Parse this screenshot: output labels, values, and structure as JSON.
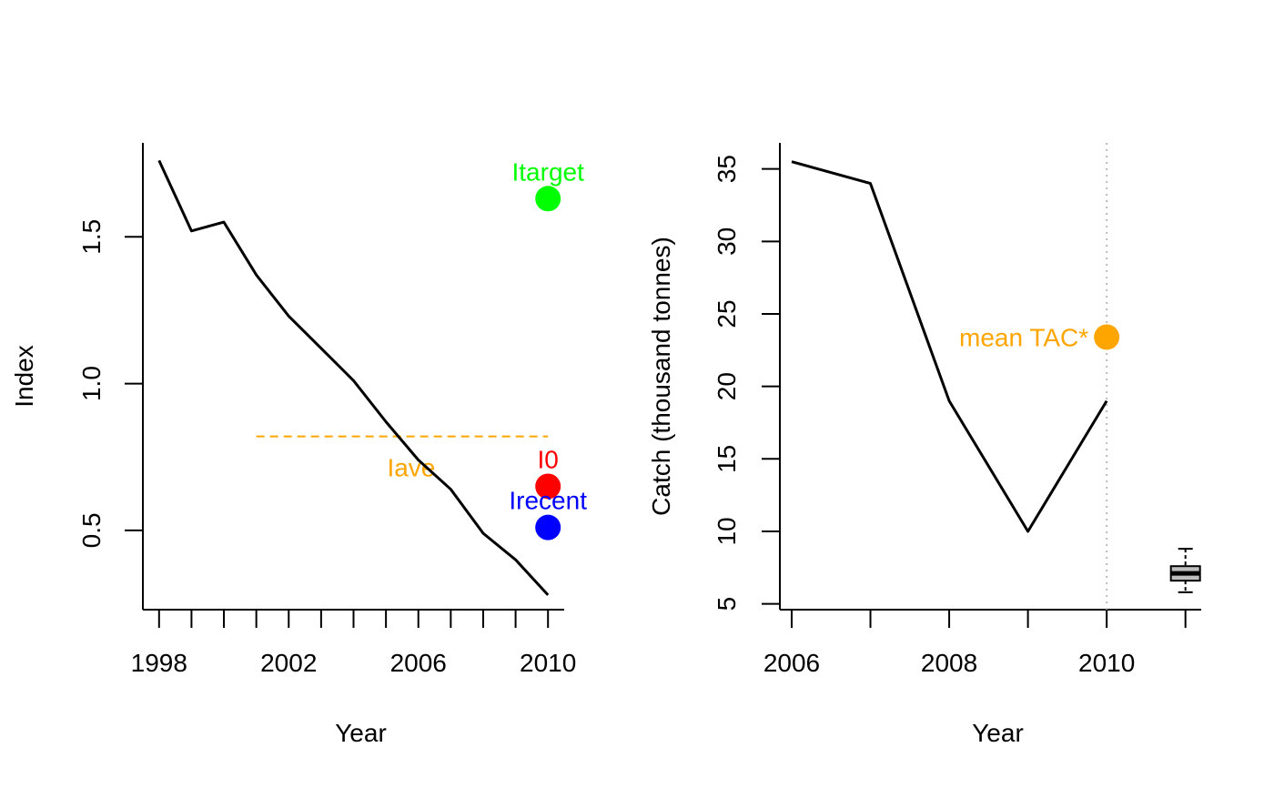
{
  "chart_data": [
    {
      "type": "line",
      "xlabel": "Year",
      "ylabel": "Index",
      "xlim": [
        1997.5,
        2010.5
      ],
      "ylim": [
        0.23,
        1.82
      ],
      "xticks": [
        1998,
        2002,
        2006,
        2010
      ],
      "xticks_minor": [
        1998,
        1999,
        2000,
        2001,
        2002,
        2003,
        2004,
        2005,
        2006,
        2007,
        2008,
        2009,
        2010
      ],
      "yticks": [
        0.5,
        1.0,
        1.5
      ],
      "ytick_labels": [
        "0.5",
        "1.0",
        "1.5"
      ],
      "series": [
        {
          "x": [
            1998,
            1999,
            2000,
            2001,
            2002,
            2003,
            2004,
            2005,
            2006,
            2007,
            2008,
            2009,
            2010
          ],
          "values": [
            1.76,
            1.52,
            1.55,
            1.37,
            1.23,
            1.12,
            1.01,
            0.87,
            0.74,
            0.64,
            0.49,
            0.4,
            0.28
          ]
        }
      ],
      "reference_lines": [
        {
          "label": "Iave",
          "x": [
            2001,
            2010
          ],
          "y": 0.82,
          "color": "#FFA500",
          "style": "dashed"
        }
      ],
      "points": [
        {
          "label": "Itarget",
          "x": 2010,
          "y": 1.63,
          "color": "#00FF00"
        },
        {
          "label": "I0",
          "x": 2010,
          "y": 0.65,
          "color": "#FF0000"
        },
        {
          "label": "Irecent",
          "x": 2010,
          "y": 0.51,
          "color": "#0000FF"
        }
      ]
    },
    {
      "type": "line",
      "xlabel": "Year",
      "ylabel": "Catch (thousand tonnes)",
      "xlim": [
        2005.85,
        2011.2
      ],
      "ylim": [
        4.6,
        36.8
      ],
      "xticks": [
        2006,
        2008,
        2010
      ],
      "xticks_minor": [
        2006,
        2007,
        2008,
        2009,
        2010,
        2011
      ],
      "yticks": [
        5,
        10,
        15,
        20,
        25,
        30,
        35
      ],
      "ytick_labels": [
        "5",
        "10",
        "15",
        "20",
        "25",
        "30",
        "35"
      ],
      "series": [
        {
          "x": [
            2006,
            2007,
            2008,
            2009,
            2010
          ],
          "values": [
            35.5,
            34.0,
            19.0,
            10.0,
            19.0
          ]
        }
      ],
      "vertical_lines": [
        {
          "x": 2010,
          "color": "#bbbbbb",
          "style": "dotted"
        }
      ],
      "points": [
        {
          "label": "mean TAC*",
          "x": 2010,
          "y": 23.4,
          "color": "#FFA500"
        }
      ],
      "boxplot": {
        "x": 2011,
        "min": 5.8,
        "q1": 6.6,
        "median": 7.1,
        "q3": 7.6,
        "max": 8.8,
        "fill": "#BEBEBE"
      }
    }
  ]
}
